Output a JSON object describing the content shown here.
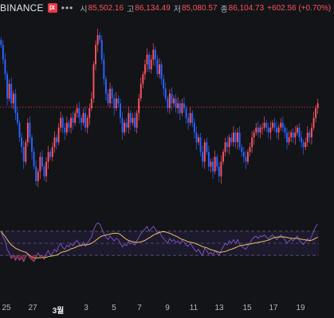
{
  "legend": {
    "exchange": "BINANCE",
    "more": "•••",
    "open_label": "시",
    "open": "85,502.16",
    "high_label": "고",
    "high": "86,134.49",
    "low_label": "저",
    "low": "85,080.57",
    "close_label": "종",
    "close": "86,104.73",
    "change": "+602.56 (+0.70%)"
  },
  "colors": {
    "background": "#131417",
    "up": "#f7525f",
    "down": "#2962ff",
    "oscillator_line": "#7e57c2",
    "signal_line": "#e3c265",
    "oscillator_band": "#1e1a2e",
    "price_line": "#f23645"
  },
  "x_axis": {
    "ticks": [
      "25",
      "27",
      "3월",
      "3",
      "5",
      "7",
      "9",
      "11",
      "13",
      "15",
      "17",
      "19"
    ],
    "bold_tick": "3월"
  },
  "chart_data": [
    {
      "type": "candlestick",
      "x_ticks": [
        "25",
        "27",
        "3월",
        "3",
        "5",
        "7",
        "9",
        "11",
        "13",
        "15",
        "17",
        "19"
      ],
      "close": [
        96,
        93,
        90,
        85,
        88,
        84,
        86,
        82,
        80,
        77,
        75,
        72,
        76,
        80,
        77,
        74,
        71,
        68,
        70,
        73,
        71,
        69,
        72,
        74,
        73,
        75,
        77,
        76,
        79,
        81,
        79,
        78,
        80,
        79,
        81,
        80,
        82,
        83,
        81,
        80,
        82,
        79,
        81,
        83,
        85,
        92,
        96,
        98,
        97,
        93,
        89,
        86,
        84,
        87,
        85,
        83,
        85,
        84,
        81,
        78,
        80,
        79,
        82,
        80,
        81,
        79,
        82,
        85,
        88,
        90,
        92,
        94,
        91,
        93,
        95,
        93,
        90,
        92,
        89,
        87,
        85,
        83,
        86,
        84,
        85,
        83,
        84,
        82,
        84,
        83,
        81,
        80,
        82,
        80,
        78,
        76,
        77,
        74,
        72,
        76,
        74,
        71,
        72,
        70,
        73,
        71,
        69,
        72,
        74,
        76,
        75,
        77,
        76,
        78,
        76,
        78,
        75,
        74,
        73,
        72,
        74,
        75,
        77,
        78,
        79,
        78,
        79,
        79,
        80,
        79,
        78,
        79,
        80,
        79,
        78,
        79,
        80,
        79,
        78,
        76,
        77,
        78,
        77,
        78,
        79,
        77,
        76,
        75,
        76,
        78,
        77,
        79,
        81,
        83,
        84
      ],
      "price_line": 83.2,
      "y_range": [
        67,
        100
      ]
    },
    {
      "type": "line",
      "series": [
        {
          "values": [
            70,
            60,
            54,
            40,
            34,
            25,
            30,
            22,
            28,
            22,
            26,
            20,
            28,
            32,
            26,
            23,
            20,
            26,
            34,
            28,
            30,
            24,
            33,
            38,
            30,
            34,
            40,
            36,
            45,
            50,
            43,
            40,
            47,
            44,
            50,
            46,
            52,
            55,
            48,
            46,
            52,
            45,
            50,
            56,
            60,
            72,
            80,
            84,
            82,
            74,
            66,
            60,
            56,
            62,
            58,
            54,
            58,
            56,
            50,
            44,
            48,
            46,
            53,
            49,
            51,
            47,
            54,
            60,
            66,
            70,
            74,
            78,
            70,
            74,
            78,
            74,
            66,
            70,
            62,
            58,
            54,
            50,
            58,
            53,
            56,
            51,
            54,
            49,
            55,
            52,
            47,
            45,
            50,
            45,
            40,
            36,
            40,
            34,
            30,
            42,
            38,
            32,
            35,
            30,
            38,
            34,
            30,
            38,
            44,
            50,
            47,
            54,
            50,
            56,
            50,
            56,
            48,
            45,
            42,
            40,
            46,
            50,
            56,
            60,
            62,
            58,
            62,
            61,
            64,
            60,
            57,
            61,
            64,
            60,
            56,
            60,
            64,
            60,
            56,
            50,
            54,
            57,
            54,
            58,
            62,
            55,
            51,
            48,
            52,
            58,
            54,
            62,
            70,
            78,
            82
          ]
        },
        {
          "values": []
        }
      ],
      "y_range": [
        0,
        100
      ],
      "bands": [
        30,
        50,
        70
      ]
    }
  ]
}
